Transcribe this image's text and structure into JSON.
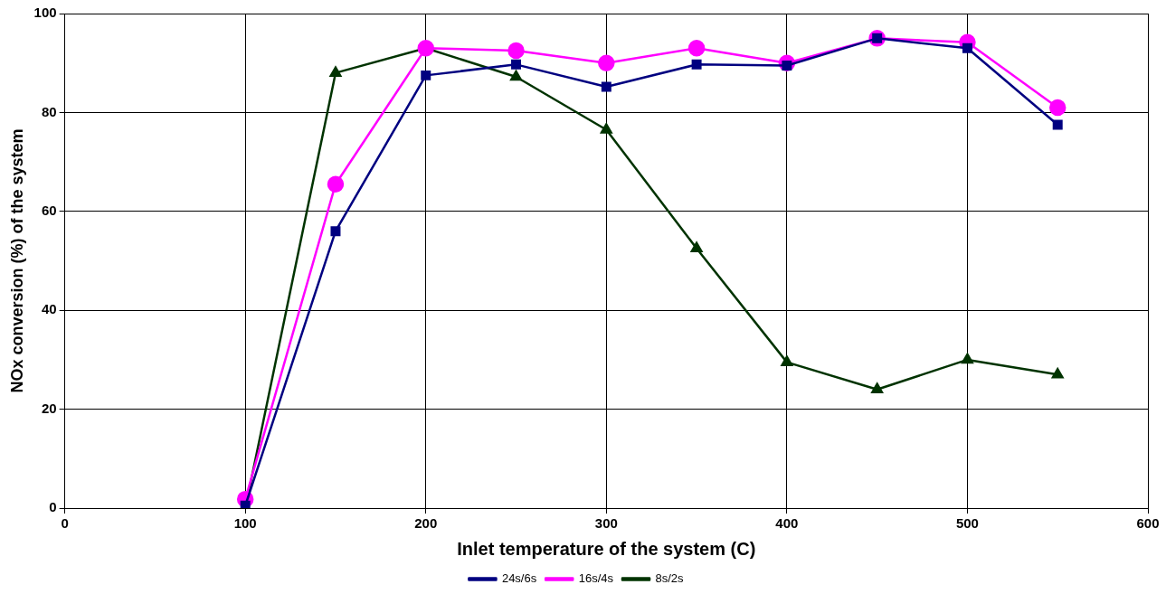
{
  "chart_data": {
    "type": "line",
    "xlabel": "Inlet temperature of the system (C)",
    "ylabel": "NOx conversion (%) of the system",
    "x": [
      100,
      150,
      200,
      250,
      300,
      350,
      400,
      450,
      500,
      550
    ],
    "series": [
      {
        "name": "24s/6s",
        "color": "#000080",
        "marker": "square",
        "values": [
          0.5,
          56,
          87.5,
          89.7,
          85.2,
          89.7,
          89.5,
          95,
          93,
          77.5
        ]
      },
      {
        "name": "16s/4s",
        "color": "#ff00ff",
        "marker": "circle",
        "values": [
          1.8,
          65.5,
          93,
          92.5,
          90,
          93,
          90,
          95,
          94.2,
          81
        ]
      },
      {
        "name": "8s/2s",
        "color": "#003300",
        "marker": "triangle",
        "values": [
          0,
          88,
          93,
          87.2,
          76.5,
          52.5,
          29.5,
          24,
          30,
          27
        ]
      }
    ],
    "xlim": [
      0,
      600
    ],
    "xticks": [
      0,
      100,
      200,
      300,
      400,
      500,
      600
    ],
    "ylim": [
      0,
      100
    ],
    "yticks": [
      0,
      20,
      40,
      60,
      80,
      100
    ],
    "grid": true,
    "legend": "bottom",
    "line_style": "solid"
  }
}
